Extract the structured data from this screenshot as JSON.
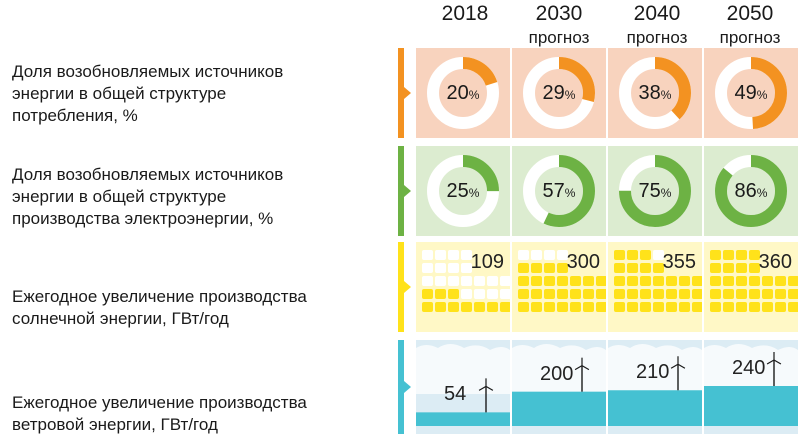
{
  "columns": [
    {
      "year": "2018",
      "sub": ""
    },
    {
      "year": "2030",
      "sub": "прогноз"
    },
    {
      "year": "2040",
      "sub": "прогноз"
    },
    {
      "year": "2050",
      "sub": "прогноз"
    }
  ],
  "colors": {
    "orange": "#f39221",
    "orange_bg": "#f8d3be",
    "green": "#6db244",
    "green_bg": "#dcecd0",
    "yellow": "#ffe21a",
    "yellow_bg": "#fff8c6",
    "blue": "#45c1d2",
    "blue_bg": "#dcecf4"
  },
  "chart_data": [
    {
      "type": "pie",
      "title": "",
      "label_lines": [
        "Доля возобновляемых источников",
        "энергии в общей структуре",
        "потребления, %"
      ],
      "categories": [
        "2018",
        "2030",
        "2040",
        "2050"
      ],
      "values": [
        20,
        29,
        38,
        49
      ],
      "labels": [
        "20",
        "29",
        "38",
        "49"
      ],
      "unit": "%"
    },
    {
      "type": "pie",
      "title": "",
      "label_lines": [
        "Доля возобновляемых источников",
        "энергии в общей структуре",
        "производства электроэнергии, %"
      ],
      "categories": [
        "2018",
        "2030",
        "2040",
        "2050"
      ],
      "values": [
        25,
        57,
        75,
        86
      ],
      "labels": [
        "25",
        "57",
        "75",
        "86"
      ],
      "unit": "%"
    },
    {
      "type": "bar",
      "title": "",
      "label_lines": [
        "Ежегодное увеличение производства",
        "солнечной энергии, ГВт/год"
      ],
      "categories": [
        "2018",
        "2030",
        "2040",
        "2050"
      ],
      "values": [
        109,
        300,
        355,
        360
      ],
      "labels": [
        "109",
        "300",
        "355",
        "360"
      ]
    },
    {
      "type": "bar",
      "title": "",
      "label_lines": [
        "Ежегодное увеличение производства",
        "ветровой энергии, ГВт/год"
      ],
      "categories": [
        "2018",
        "2030",
        "2040",
        "2050"
      ],
      "values": [
        54,
        200,
        210,
        240
      ],
      "labels": [
        "54",
        "200",
        "210",
        "240"
      ]
    }
  ]
}
